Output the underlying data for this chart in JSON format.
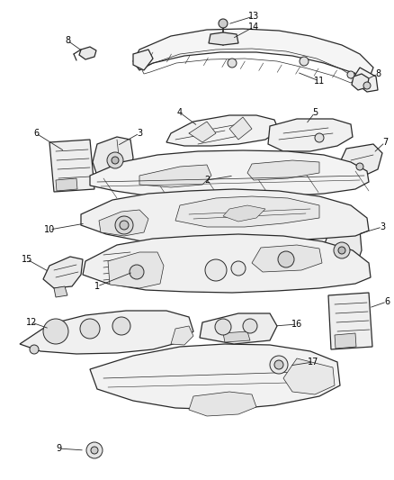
{
  "background_color": "#ffffff",
  "line_color": "#2a2a2a",
  "label_color": "#000000",
  "fig_width": 4.38,
  "fig_height": 5.33,
  "dpi": 100
}
